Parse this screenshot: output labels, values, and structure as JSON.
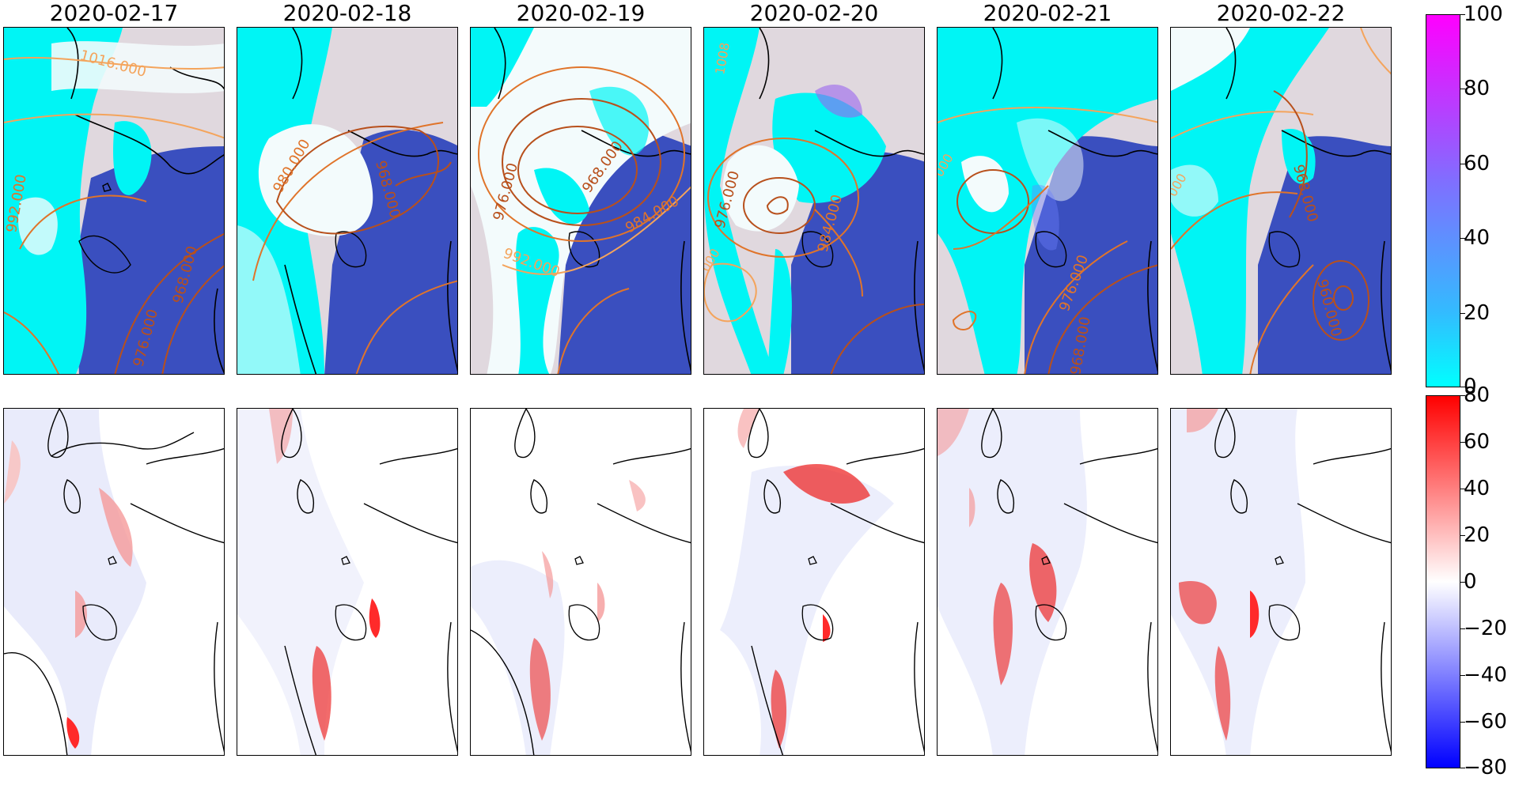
{
  "titles": [
    "2020-02-17",
    "2020-02-18",
    "2020-02-19",
    "2020-02-20",
    "2020-02-21",
    "2020-02-22"
  ],
  "contour_labels": {
    "panel1": [
      "1016.000",
      "992.000",
      "968.000",
      "976.000"
    ],
    "panel2": [
      "980.000",
      "968.000"
    ],
    "panel3": [
      "976.000",
      "968.000",
      "984.000",
      "992.000"
    ],
    "panel4": [
      "976.000",
      "984.000",
      "1008",
      "000"
    ],
    "panel5": [
      "976.000",
      "968.000",
      "000"
    ],
    "panel6": [
      "968.000",
      "960.000",
      "000"
    ]
  },
  "colorbars": {
    "top": {
      "ticks": [
        "100",
        "80",
        "60",
        "40",
        "20",
        "0"
      ],
      "colors": [
        "#ff00ff",
        "#7f6fff",
        "#00ffff"
      ]
    },
    "bottom": {
      "ticks": [
        "80",
        "60",
        "40",
        "20",
        "0",
        "−20",
        "−40",
        "−60",
        "−80"
      ],
      "colors": [
        "#ff0000",
        "#ffffff",
        "#0000ff"
      ]
    }
  },
  "colors": {
    "ocean": "#3a4fbf",
    "land": "#e0d8de",
    "snow": "#00f5f5",
    "snow_light": "#f3fbfc",
    "contour_light": "#f4a45c",
    "contour_mid": "#e0742a",
    "contour_dark": "#b8501c"
  }
}
